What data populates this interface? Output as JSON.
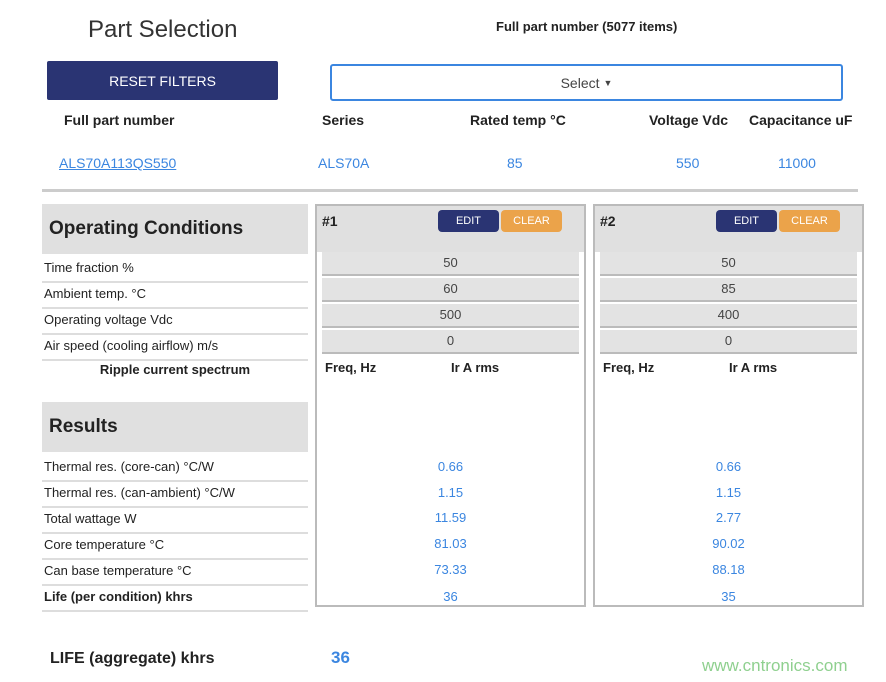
{
  "title": "Part Selection",
  "part_count_label": "Full part number (5077 items)",
  "reset_label": "RESET FILTERS",
  "select_label": "Select",
  "columns": [
    "Full part number",
    "Series",
    "Rated temp °C",
    "Voltage Vdc",
    "Capacitance uF"
  ],
  "part": {
    "number": "ALS70A113QS550",
    "series": "ALS70A",
    "rated_temp": "85",
    "voltage": "550",
    "capacitance": "11000"
  },
  "operating": {
    "title": "Operating Conditions",
    "labels": [
      "Time fraction %",
      "Ambient temp. °C",
      "Operating voltage Vdc",
      "Air speed (cooling airflow) m/s"
    ],
    "ripple_label": "Ripple current spectrum"
  },
  "results": {
    "title": "Results",
    "labels": [
      "Thermal res. (core-can) °C/W",
      "Thermal res. (can-ambient) °C/W",
      "Total wattage W",
      "Core temperature °C",
      "Can base temperature °C",
      "Life (per condition) khrs"
    ]
  },
  "panels": [
    {
      "name": "#1",
      "edit": "EDIT",
      "clear": "CLEAR",
      "inputs": [
        "50",
        "60",
        "500",
        "0"
      ],
      "freq": "Freq, Hz",
      "ir": "Ir A rms",
      "results": [
        "0.66",
        "1.15",
        "11.59",
        "81.03",
        "73.33",
        "36"
      ]
    },
    {
      "name": "#2",
      "edit": "EDIT",
      "clear": "CLEAR",
      "inputs": [
        "50",
        "85",
        "400",
        "0"
      ],
      "freq": "Freq, Hz",
      "ir": "Ir A rms",
      "results": [
        "0.66",
        "1.15",
        "2.77",
        "90.02",
        "88.18",
        "35"
      ]
    }
  ],
  "aggregate": {
    "label": "LIFE (aggregate) khrs",
    "value": "36"
  },
  "watermark": "www.cntronics.com",
  "colors": {
    "primary": "#2a3473",
    "accent": "#eba34a",
    "link": "#3b86e0"
  }
}
